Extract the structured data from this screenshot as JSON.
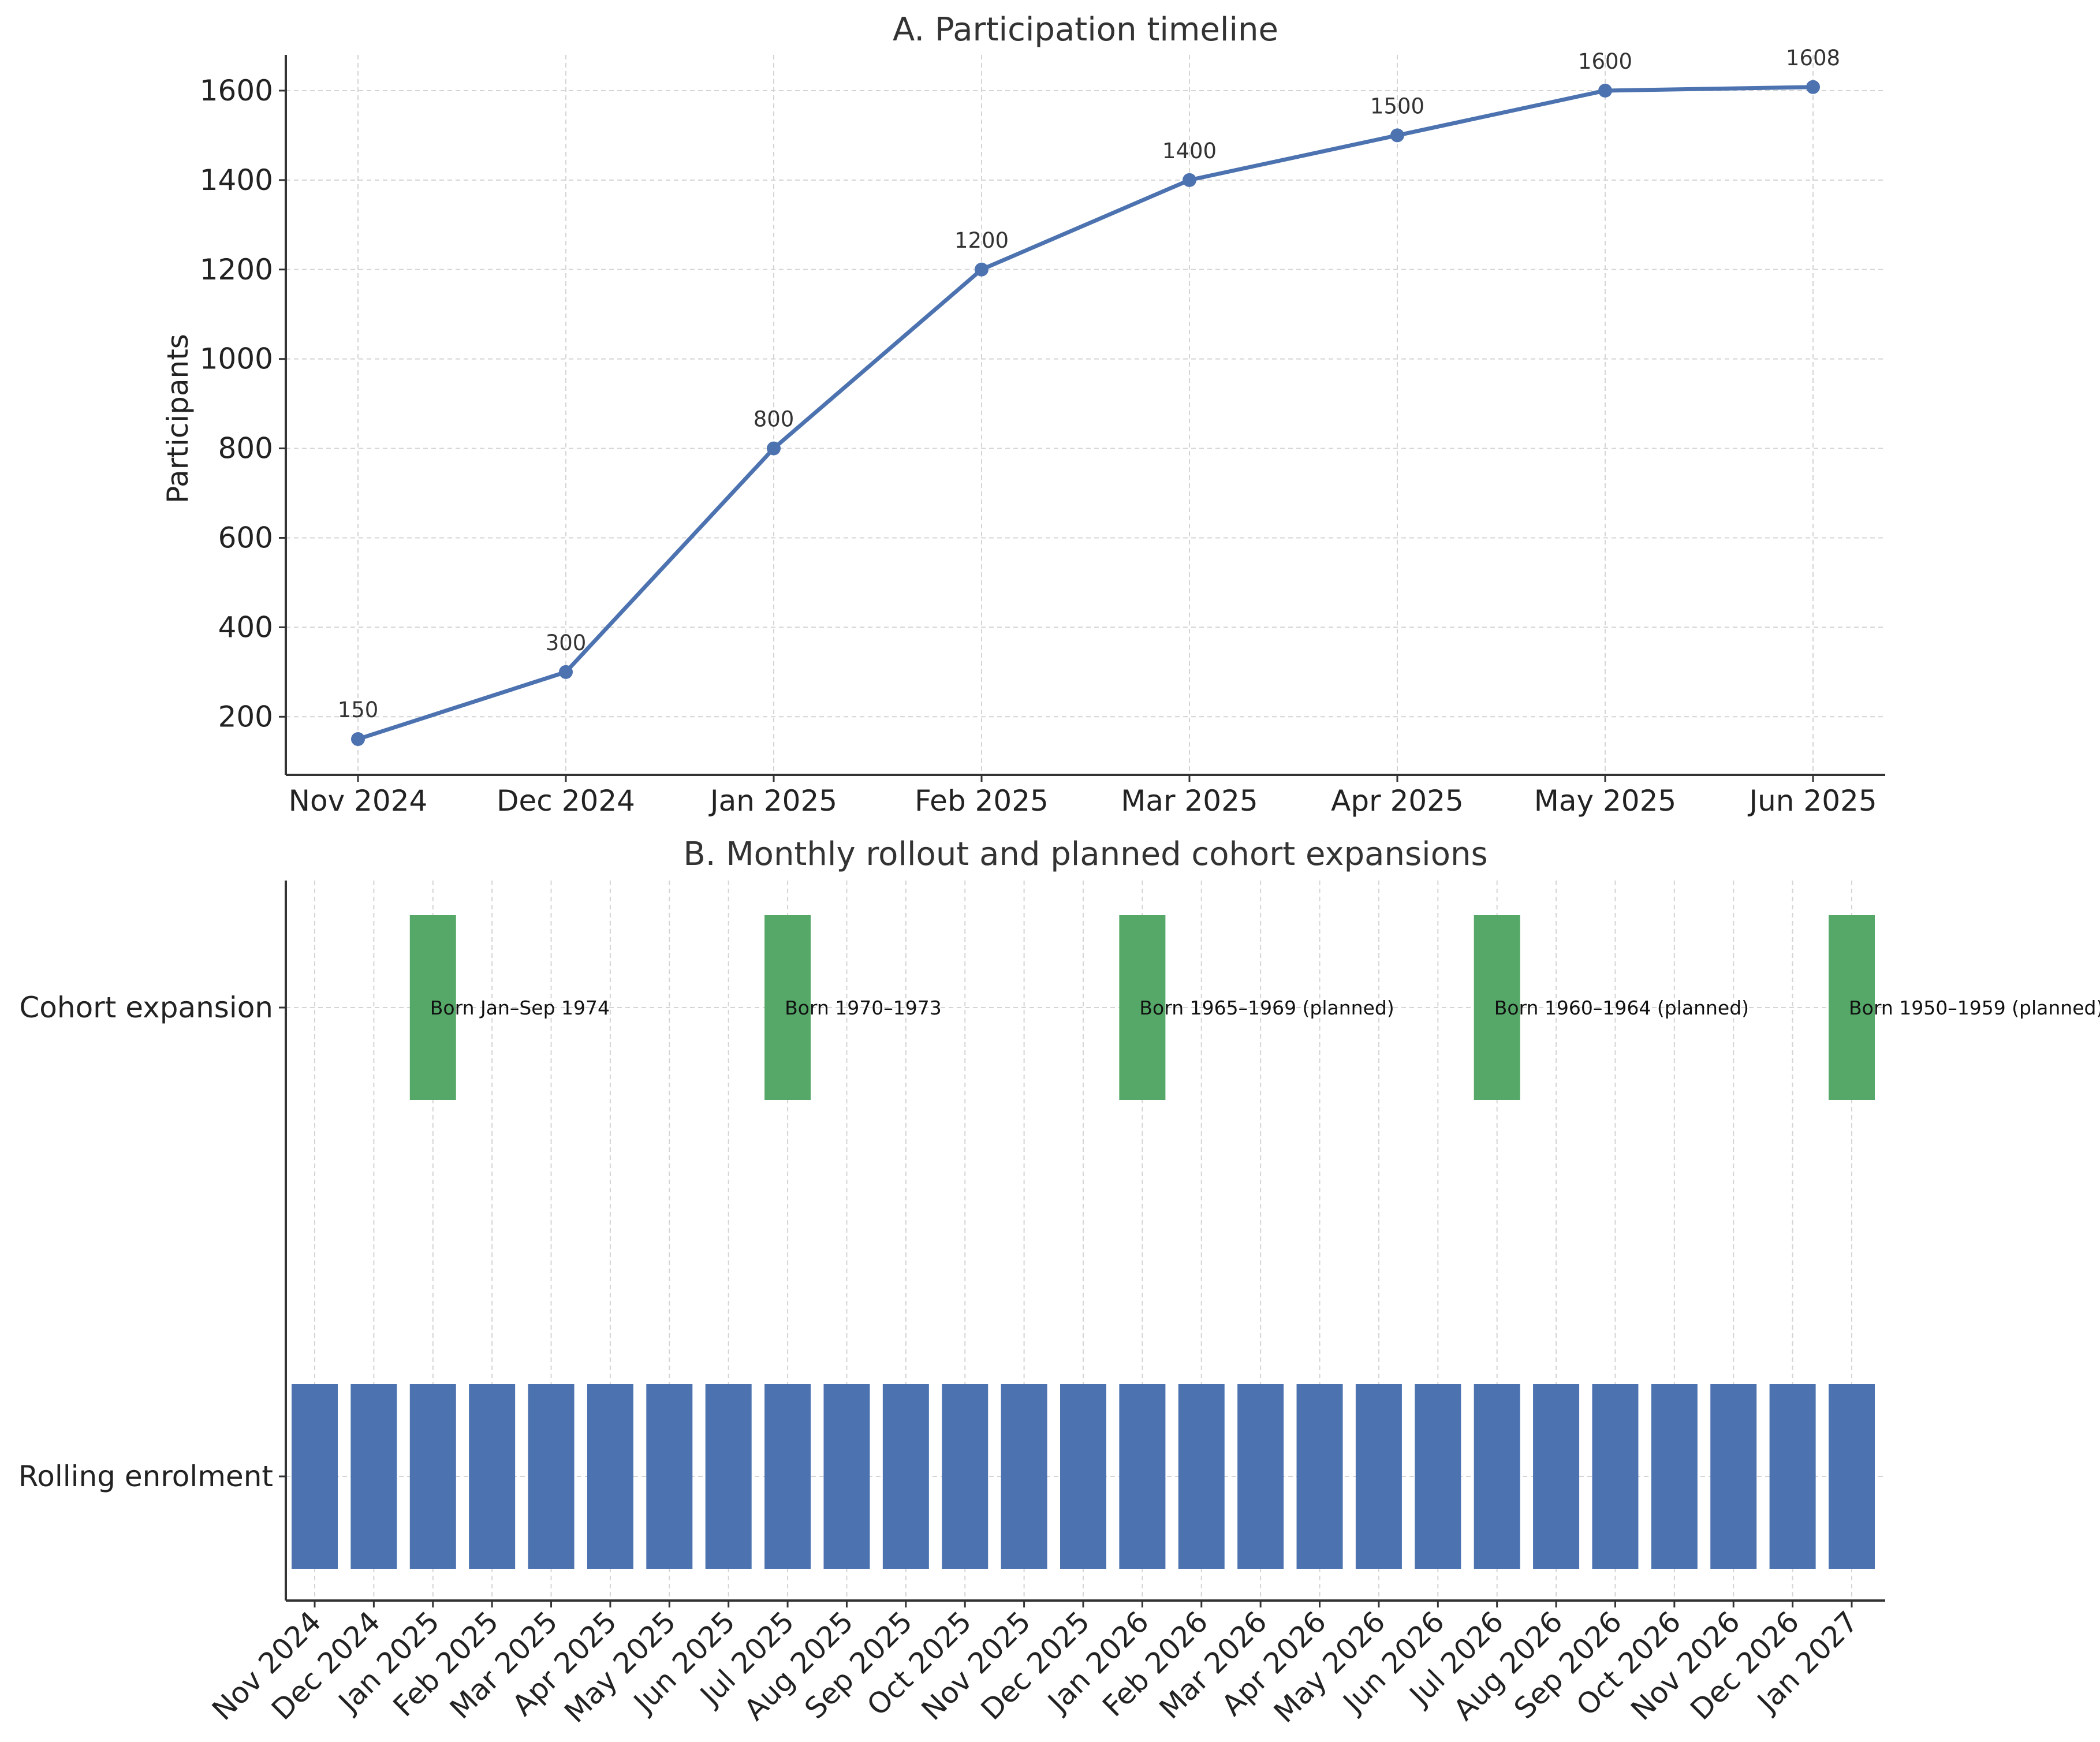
{
  "colors": {
    "line": "#4c72b0",
    "rollout": "#4c72b0",
    "expansion": "#55a868",
    "grid": "#d4d4d4",
    "axis": "#333333"
  },
  "chart_data": [
    {
      "type": "line",
      "title": "A. Participation timeline",
      "xlabel": "",
      "ylabel": "Participants",
      "categories": [
        "Nov 2024",
        "Dec 2024",
        "Jan 2025",
        "Feb 2025",
        "Mar 2025",
        "Apr 2025",
        "May 2025",
        "Jun 2025"
      ],
      "series": [
        {
          "name": "Participants",
          "values": [
            150,
            300,
            800,
            1200,
            1400,
            1500,
            1600,
            1608
          ],
          "labels": [
            "150",
            "300",
            "800",
            "1200",
            "1400",
            "1500",
            "1600",
            "1608"
          ]
        }
      ],
      "yticks": [
        200,
        400,
        600,
        800,
        1000,
        1200,
        1400,
        1600
      ],
      "ytick_labels": [
        "200",
        "400",
        "600",
        "800",
        "1000",
        "1200",
        "1400",
        "1600"
      ],
      "ylim": [
        70,
        1680
      ],
      "grid": true
    },
    {
      "type": "bar",
      "title": "B. Monthly rollout and planned cohort expansions",
      "categories": [
        "Nov 2024",
        "Dec 2024",
        "Jan 2025",
        "Feb 2025",
        "Mar 2025",
        "Apr 2025",
        "May 2025",
        "Jun 2025",
        "Jul 2025",
        "Aug 2025",
        "Sep 2025",
        "Oct 2025",
        "Nov 2025",
        "Dec 2025",
        "Jan 2026",
        "Feb 2026",
        "Mar 2026",
        "Apr 2026",
        "May 2026",
        "Jun 2026",
        "Jul 2026",
        "Aug 2026",
        "Sep 2026",
        "Oct 2026",
        "Nov 2026",
        "Dec 2026",
        "Jan 2027"
      ],
      "rows": [
        "Cohort expansion",
        "Rolling enrolment"
      ],
      "rollout": {
        "row": "Rolling enrolment",
        "months": [
          "Nov 2024",
          "Dec 2024",
          "Jan 2025",
          "Feb 2025",
          "Mar 2025",
          "Apr 2025",
          "May 2025",
          "Jun 2025",
          "Jul 2025",
          "Aug 2025",
          "Sep 2025",
          "Oct 2025",
          "Nov 2025",
          "Dec 2025",
          "Jan 2026",
          "Feb 2026",
          "Mar 2026",
          "Apr 2026",
          "May 2026",
          "Jun 2026",
          "Jul 2026",
          "Aug 2026",
          "Sep 2026",
          "Oct 2026",
          "Nov 2026",
          "Dec 2026",
          "Jan 2027"
        ]
      },
      "expansions": [
        {
          "month": "Jan 2025",
          "label": "Born Jan–Sep 1974"
        },
        {
          "month": "Jul 2025",
          "label": "Born 1970–1973"
        },
        {
          "month": "Jan 2026",
          "label": "Born 1965–1969 (planned)"
        },
        {
          "month": "Jul 2026",
          "label": "Born 1960–1964 (planned)"
        },
        {
          "month": "Jan 2027",
          "label": "Born 1950–1959 (planned)"
        }
      ],
      "grid": true
    }
  ]
}
